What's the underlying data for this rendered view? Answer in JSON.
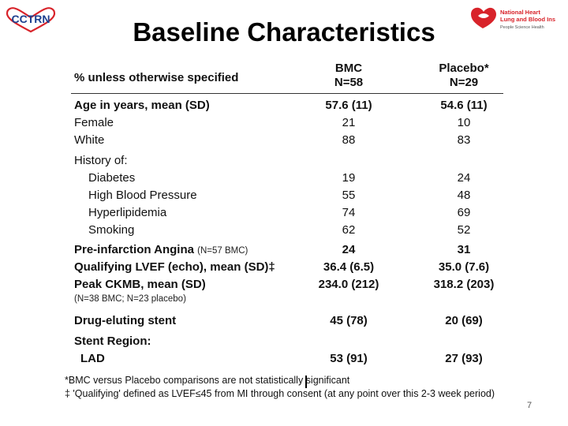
{
  "slide": {
    "title": "Baseline Characteristics",
    "page_number": "7"
  },
  "logos": {
    "left_text": "CCTRN",
    "right_line1": "National Heart",
    "right_line2": "Lung and Blood Institute",
    "right_line3": "People Science Health"
  },
  "table": {
    "header": {
      "label": "% unless otherwise specified",
      "col1_name": "BMC",
      "col1_n": "N=58",
      "col2_name": "Placebo*",
      "col2_n": "N=29"
    },
    "rows": [
      {
        "label": "Age in years, mean (SD)",
        "bmc": "57.6 (11)",
        "placebo": "54.6 (11)"
      },
      {
        "label": "Female",
        "bmc": "21",
        "placebo": "10"
      },
      {
        "label": "White",
        "bmc": "88",
        "placebo": "83"
      },
      {
        "label": "History of:",
        "bmc": "",
        "placebo": ""
      },
      {
        "label": "Diabetes",
        "bmc": "19",
        "placebo": "24"
      },
      {
        "label": "High Blood Pressure",
        "bmc": "55",
        "placebo": "48"
      },
      {
        "label": "Hyperlipidemia",
        "bmc": "74",
        "placebo": "69"
      },
      {
        "label": "Smoking",
        "bmc": "62",
        "placebo": "52"
      },
      {
        "label": "Pre-infarction Angina",
        "note": "(N=57 BMC)",
        "bmc": "24",
        "placebo": "31"
      },
      {
        "label": "Qualifying LVEF (echo), mean (SD)‡",
        "bmc": "36.4 (6.5)",
        "placebo": "35.0 (7.6)"
      },
      {
        "label": "Peak CKMB, mean (SD)",
        "bmc": "234.0 (212)",
        "placebo": "318.2 (203)"
      },
      {
        "label": "(N=38 BMC; N=23 placebo)"
      },
      {
        "label": "Drug-eluting stent",
        "bmc": "45 (78)",
        "placebo": "20 (69)"
      },
      {
        "label": "Stent Region:",
        "bmc": "",
        "placebo": ""
      },
      {
        "label": "LAD",
        "bmc": "53 (91)",
        "placebo": "27 (93)"
      }
    ]
  },
  "footnotes": {
    "line1": "*BMC versus Placebo comparisons are not statistically significant",
    "line2": "‡ 'Qualifying' defined as LVEF≤45 from MI through consent (at any point over this 2-3 week period)"
  },
  "colors": {
    "logo_red": "#d8232a",
    "logo_blue": "#1d3f8f",
    "rule": "#333333"
  }
}
